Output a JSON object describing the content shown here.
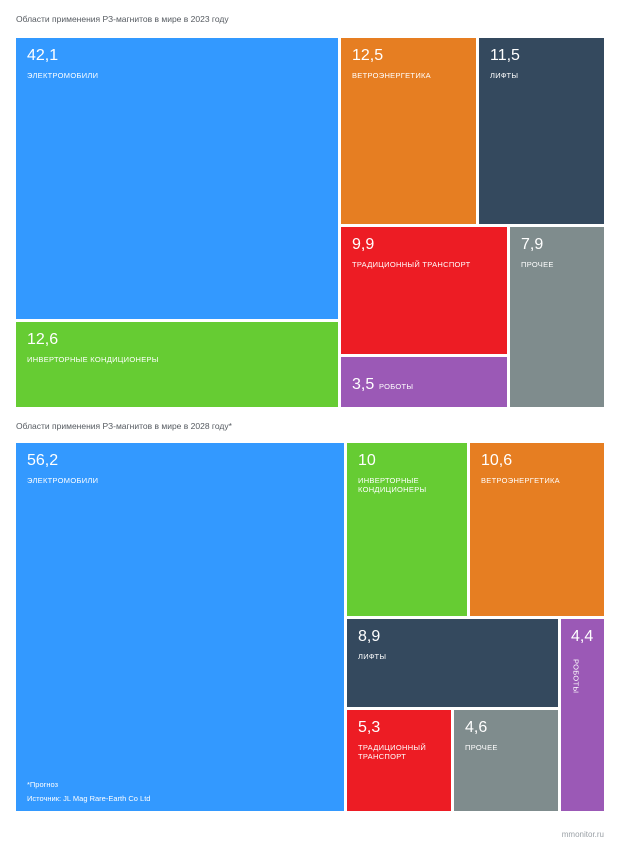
{
  "colors": {
    "ev": "#3399ff",
    "wind": "#e67e22",
    "lifts": "#34495e",
    "transport": "#ed1c24",
    "other": "#7f8c8d",
    "ac": "#66cc33",
    "robots": "#9b59b6"
  },
  "chart_data": [
    {
      "type": "treemap",
      "title": "Области применения РЗ-магнитов в мире в 2023 году",
      "items": [
        {
          "label": "электромобили",
          "value": 42.1,
          "value_text": "42,1",
          "color": "ev"
        },
        {
          "label": "ветроэнергетика",
          "value": 12.5,
          "value_text": "12,5",
          "color": "wind"
        },
        {
          "label": "лифты",
          "value": 11.5,
          "value_text": "11,5",
          "color": "lifts"
        },
        {
          "label": "традиционный транспорт",
          "value": 9.9,
          "value_text": "9,9",
          "color": "transport"
        },
        {
          "label": "прочее",
          "value": 7.9,
          "value_text": "7,9",
          "color": "other"
        },
        {
          "label": "инверторные кондиционеры",
          "value": 12.6,
          "value_text": "12,6",
          "color": "ac"
        },
        {
          "label": "роботы",
          "value": 3.5,
          "value_text": "3,5",
          "color": "robots"
        }
      ]
    },
    {
      "type": "treemap",
      "title": "Области применения РЗ-магнитов в мире в 2028 году*",
      "items": [
        {
          "label": "электромобили",
          "value": 56.2,
          "value_text": "56,2",
          "color": "ev"
        },
        {
          "label": "инверторные кондиционеры",
          "value": 10,
          "value_text": "10",
          "color": "ac"
        },
        {
          "label": "ветроэнергетика",
          "value": 10.6,
          "value_text": "10,6",
          "color": "wind"
        },
        {
          "label": "лифты",
          "value": 8.9,
          "value_text": "8,9",
          "color": "lifts"
        },
        {
          "label": "роботы",
          "value": 4.4,
          "value_text": "4,4",
          "color": "robots"
        },
        {
          "label": "традиционный транспорт",
          "value": 5.3,
          "value_text": "5,3",
          "color": "transport"
        },
        {
          "label": "прочее",
          "value": 4.6,
          "value_text": "4,6",
          "color": "other"
        }
      ],
      "footnote": "*Прогноз",
      "source": "Источник: JL Mag Rare-Earth Co Ltd"
    }
  ],
  "site": "mmonitor.ru"
}
